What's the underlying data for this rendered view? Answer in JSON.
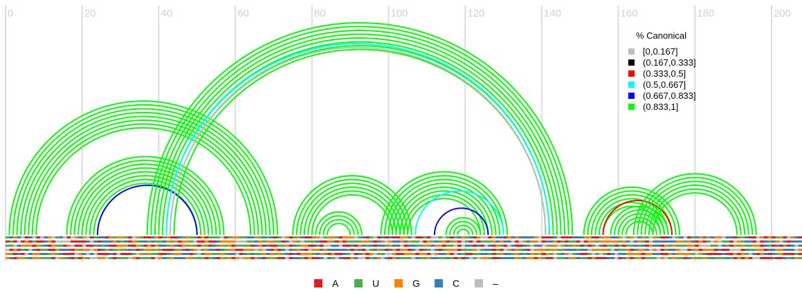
{
  "chart_data": {
    "type": "arc-diagram",
    "x_ticks": [
      "0",
      "20",
      "40",
      "60",
      "80",
      "100",
      "120",
      "140",
      "160",
      "180",
      "200"
    ],
    "xlim": [
      0,
      208
    ],
    "legend": {
      "title": "% Canonical",
      "entries": [
        {
          "label": "[0,0.167]",
          "color": "#bebebe"
        },
        {
          "label": "(0.167,0.333]",
          "color": "#000000"
        },
        {
          "label": "(0.333,0.5]",
          "color": "#ff0000"
        },
        {
          "label": "(0.5,0.667]",
          "color": "#00ffff"
        },
        {
          "label": "(0.667,0.833]",
          "color": "#0000ff"
        },
        {
          "label": "(0.833,1]",
          "color": "#00ff00"
        }
      ]
    },
    "helices": [
      {
        "i": 1,
        "j": 71,
        "n": 8,
        "color": "#00ff00"
      },
      {
        "i": 16,
        "j": 57,
        "n": 8,
        "color": "#00ff00"
      },
      {
        "i": 24,
        "j": 50,
        "n": 1,
        "color": "#0000ff"
      },
      {
        "i": 37,
        "j": 148,
        "n": 8,
        "color": "#00ff00"
      },
      {
        "i": 42,
        "j": 142,
        "n": 1,
        "color": "#00ffff"
      },
      {
        "i": 43,
        "j": 141,
        "n": 1,
        "color": "#bebebe"
      },
      {
        "i": 75,
        "j": 106,
        "n": 6,
        "color": "#00ff00"
      },
      {
        "i": 81,
        "j": 93,
        "n": 4,
        "color": "#00ff00"
      },
      {
        "i": 98,
        "j": 131,
        "n": 8,
        "color": "#00ff00"
      },
      {
        "i": 107,
        "j": 130,
        "n": 1,
        "color": "#00ffff"
      },
      {
        "i": 112,
        "j": 126,
        "n": 1,
        "color": "#0000ff"
      },
      {
        "i": 115,
        "j": 124,
        "n": 4,
        "color": "#00ff00"
      },
      {
        "i": 151,
        "j": 176,
        "n": 6,
        "color": "#00ff00"
      },
      {
        "i": 156,
        "j": 174,
        "n": 1,
        "color": "#ff0000"
      },
      {
        "i": 158,
        "j": 173,
        "n": 5,
        "color": "#00ff00"
      },
      {
        "i": 164,
        "j": 196,
        "n": 6,
        "color": "#00ff00"
      }
    ],
    "alignment_rows": 6,
    "nucleotide_legend": [
      {
        "label": "A",
        "color": "#e41a1c"
      },
      {
        "label": "U",
        "color": "#4daf4a"
      },
      {
        "label": "G",
        "color": "#ff7f00"
      },
      {
        "label": "C",
        "color": "#377eb8"
      },
      {
        "label": "–",
        "color": "#bdbdbd"
      }
    ]
  }
}
